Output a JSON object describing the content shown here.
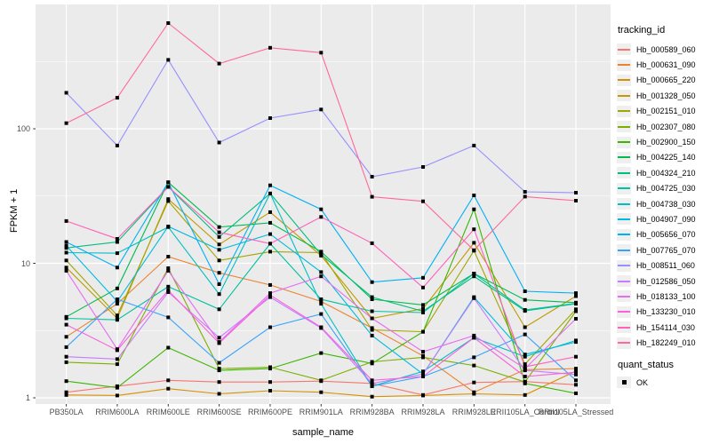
{
  "chart_data": {
    "type": "line",
    "title": "",
    "xlabel": "sample_name",
    "ylabel": "FPKM + 1",
    "y_scale": "log10",
    "y_ticks": [
      1,
      10,
      100
    ],
    "y_minor_breaks": [
      3.162,
      31.62,
      316.2
    ],
    "ylim": [
      0.93,
      840
    ],
    "grid": "on",
    "legend_position": "right",
    "point_shape": "filled-black-square",
    "categories": [
      "PB350LA",
      "RRIM600LA",
      "RRIM600LE",
      "RRIM600SE",
      "RRIM600PE",
      "RRIM901LA",
      "RRIM928BA",
      "RRIM928LA",
      "RRIM928LE",
      "RRII105LA_Control",
      "RRII105LA_Stressed"
    ],
    "series": [
      {
        "name": "Hb_000589_060",
        "color": "#F8766D",
        "values": [
          1.1,
          1.22,
          1.35,
          1.31,
          1.31,
          1.33,
          1.28,
          1.05,
          1.3,
          1.32,
          1.25
        ]
      },
      {
        "name": "Hb_000631_090",
        "color": "#EA8331",
        "values": [
          2.84,
          5.0,
          11.2,
          8.5,
          6.9,
          5.2,
          3.3,
          2.05,
          1.1,
          1.62,
          1.65
        ]
      },
      {
        "name": "Hb_000665_220",
        "color": "#D89000",
        "values": [
          1.05,
          1.04,
          1.17,
          1.07,
          1.13,
          1.1,
          1.02,
          1.04,
          1.07,
          1.05,
          1.58
        ]
      },
      {
        "name": "Hb_001328_050",
        "color": "#C09B00",
        "values": [
          9.3,
          3.9,
          30,
          13.8,
          24,
          11.4,
          3.9,
          4.6,
          14.2,
          3.35,
          5.7
        ]
      },
      {
        "name": "Hb_002151_010",
        "color": "#A3A500",
        "values": [
          10.5,
          4.1,
          29,
          10.5,
          12.2,
          12.0,
          3.2,
          3.1,
          12.4,
          1.78,
          4.55
        ]
      },
      {
        "name": "Hb_002307_080",
        "color": "#7CAE00",
        "values": [
          1.84,
          1.78,
          9.2,
          1.65,
          1.69,
          1.35,
          1.85,
          2.0,
          1.74,
          1.31,
          4.4
        ]
      },
      {
        "name": "Hb_002900_150",
        "color": "#39B600",
        "values": [
          1.33,
          1.19,
          2.36,
          1.6,
          1.65,
          2.15,
          1.8,
          3.1,
          25.2,
          1.28,
          1.08
        ]
      },
      {
        "name": "Hb_004225_140",
        "color": "#00BB4E",
        "values": [
          4.0,
          6.5,
          40,
          18.6,
          20,
          12.2,
          5.4,
          4.9,
          8.4,
          5.35,
          5.1
        ]
      },
      {
        "name": "Hb_004324_210",
        "color": "#00BF7D",
        "values": [
          13,
          14.4,
          37,
          15.7,
          33,
          11.6,
          5.6,
          4.4,
          8.0,
          4.43,
          5.0
        ]
      },
      {
        "name": "Hb_004725_030",
        "color": "#00C1A3",
        "values": [
          3.9,
          3.8,
          6.7,
          4.55,
          14,
          5.4,
          4.4,
          4.3,
          8.4,
          4.5,
          5.03
        ]
      },
      {
        "name": "Hb_004738_030",
        "color": "#00BFC4",
        "values": [
          12,
          11.9,
          18.6,
          5.9,
          33,
          5.0,
          1.22,
          1.57,
          2.8,
          2.02,
          2.67
        ]
      },
      {
        "name": "Hb_004907_090",
        "color": "#00BAE0",
        "values": [
          13.5,
          5.2,
          18.8,
          12.6,
          16.5,
          8.6,
          2.9,
          1.5,
          5.6,
          2.1,
          2.6
        ]
      },
      {
        "name": "Hb_005656_070",
        "color": "#00B0F6",
        "values": [
          14.4,
          9.3,
          40,
          7.0,
          38,
          25.2,
          7.25,
          7.8,
          32,
          6.2,
          6.0
        ]
      },
      {
        "name": "Hb_007765_070",
        "color": "#35A2FF",
        "values": [
          2.38,
          5.4,
          3.96,
          1.82,
          3.35,
          4.2,
          1.22,
          1.44,
          2.0,
          2.96,
          1.35
        ]
      },
      {
        "name": "Hb_008511_060",
        "color": "#9590FF",
        "values": [
          185,
          75,
          325,
          79,
          120,
          139,
          44,
          52,
          75,
          34,
          33.5
        ]
      },
      {
        "name": "Hb_012586_050",
        "color": "#C77CFF",
        "values": [
          2.02,
          1.94,
          6.1,
          2.8,
          5.6,
          3.3,
          1.28,
          1.5,
          5.5,
          1.6,
          1.49
        ]
      },
      {
        "name": "Hb_018133_100",
        "color": "#E76BF3",
        "values": [
          8.8,
          2.3,
          8.8,
          2.6,
          6.0,
          8.0,
          3.9,
          2.2,
          2.9,
          1.65,
          3.87
        ]
      },
      {
        "name": "Hb_133230_010",
        "color": "#FA62DB",
        "values": [
          3.5,
          2.26,
          6.3,
          2.55,
          5.8,
          3.35,
          1.35,
          1.44,
          2.8,
          1.44,
          1.55
        ]
      },
      {
        "name": "Hb_154114_030",
        "color": "#FF62BC",
        "values": [
          20.6,
          15.2,
          37,
          17,
          14,
          22.1,
          14.1,
          6.6,
          17.9,
          1.7,
          2.02
        ]
      },
      {
        "name": "Hb_182249_010",
        "color": "#FF6A98",
        "values": [
          110,
          170,
          610,
          305,
          400,
          368,
          31.2,
          28.9,
          12.5,
          31.3,
          29.2
        ]
      }
    ],
    "colors": {
      "panel_bg": "#EBEBEB",
      "grid": "#FFFFFF",
      "tick": "#333333",
      "tick_label": "#4D4D4D",
      "point": "#000000"
    }
  },
  "legend": {
    "tracking_title": "tracking_id",
    "quant_title": "quant_status",
    "quant_items": [
      {
        "label": "OK"
      }
    ]
  }
}
